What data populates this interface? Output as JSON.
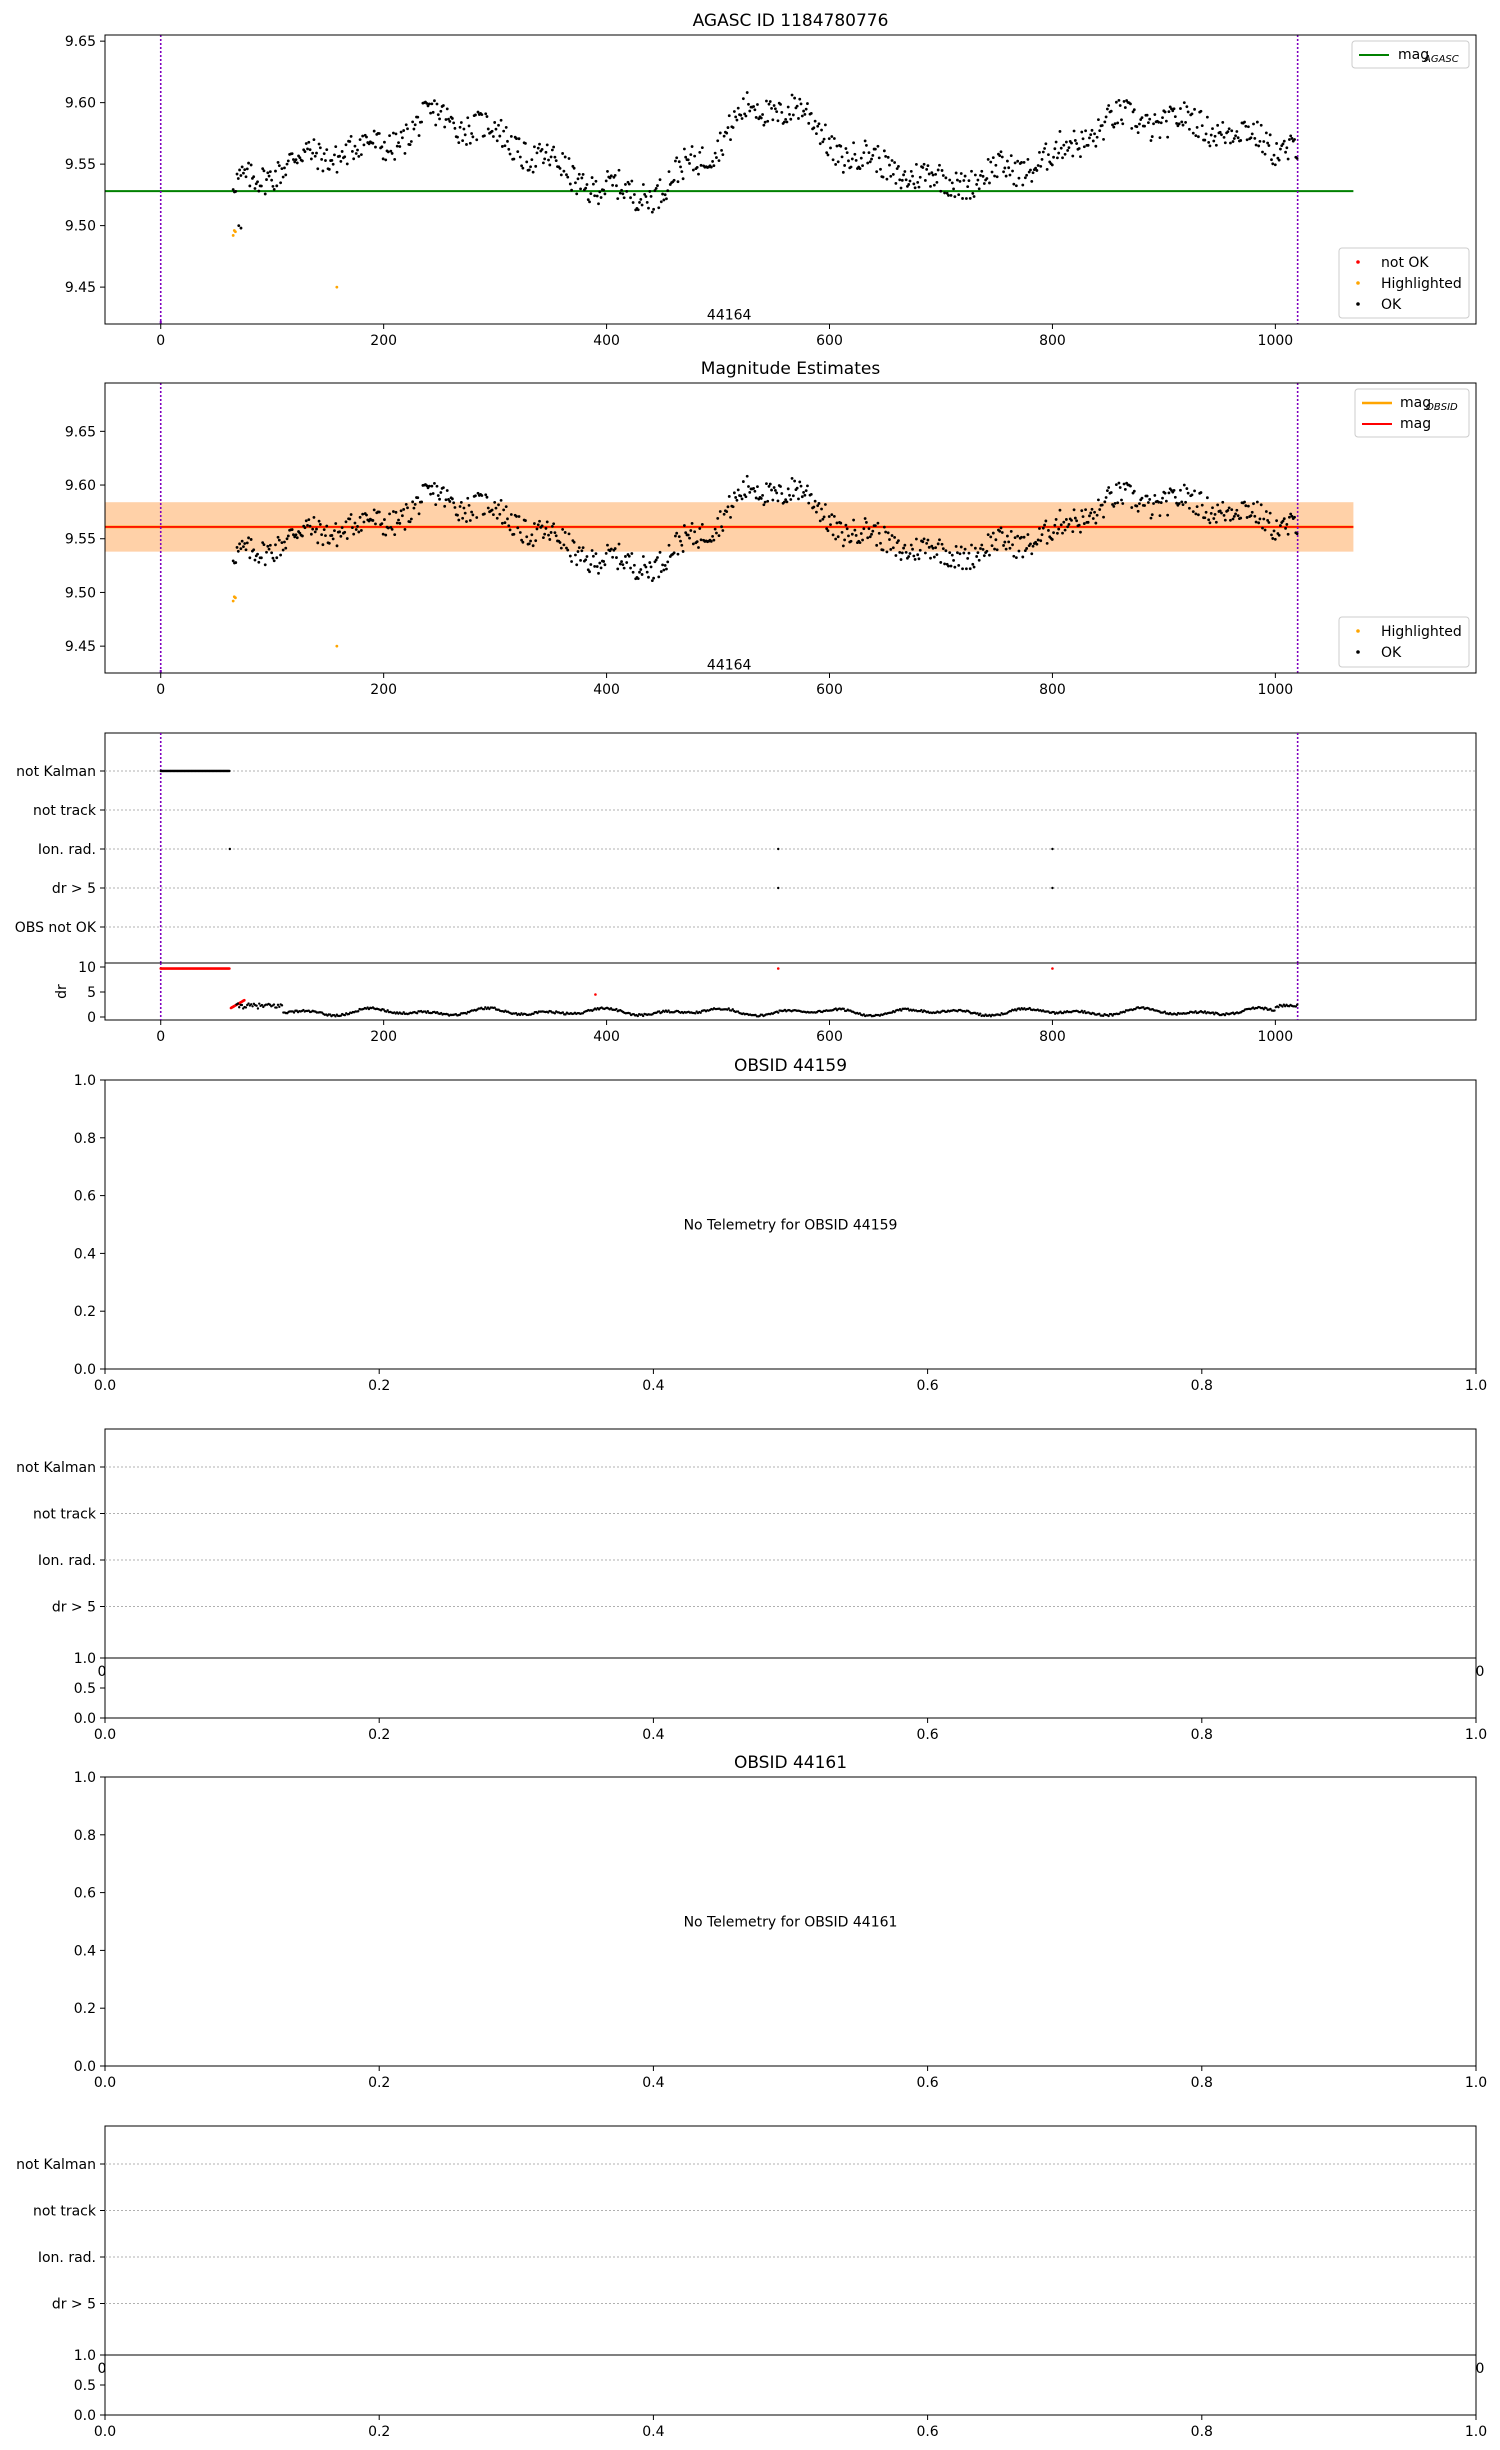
{
  "chart_data": [
    {
      "type": "scatter",
      "title": "AGASC ID 1184780776",
      "xlim": [
        -50,
        1180
      ],
      "ylim": [
        9.42,
        9.655
      ],
      "xticks": [
        0,
        200,
        400,
        600,
        800,
        1000
      ],
      "yticks": [
        9.45,
        9.5,
        9.55,
        9.6,
        9.65
      ],
      "ytick_labels": [
        "9.45",
        "9.50",
        "9.55",
        "9.60",
        "9.65"
      ],
      "vlines": [
        0,
        1020
      ],
      "vline_color": "#7f00bf",
      "hlines": [
        {
          "y": 9.528,
          "x0": -50,
          "x1": 1070,
          "color": "#008000",
          "name": "mag_AGASC"
        }
      ],
      "annotation": {
        "text": "44164",
        "x": 510,
        "y": 9.427
      },
      "series": [
        {
          "name": "not OK",
          "color": "#ff0000",
          "points": []
        },
        {
          "name": "Highlighted",
          "color": "#ffa500",
          "points": [
            [
              65,
              9.492
            ],
            [
              66,
              9.496
            ],
            [
              67,
              9.495
            ],
            [
              158,
              9.45
            ]
          ]
        },
        {
          "name": "OK",
          "color": "#000000",
          "points": "dense trace x=65..1020 following mag curve"
        }
      ],
      "trend": [
        [
          65,
          9.53
        ],
        [
          100,
          9.545
        ],
        [
          130,
          9.555
        ],
        [
          160,
          9.56
        ],
        [
          200,
          9.565
        ],
        [
          250,
          9.59
        ],
        [
          300,
          9.575
        ],
        [
          340,
          9.555
        ],
        [
          380,
          9.535
        ],
        [
          420,
          9.525
        ],
        [
          450,
          9.53
        ],
        [
          490,
          9.56
        ],
        [
          530,
          9.595
        ],
        [
          570,
          9.595
        ],
        [
          610,
          9.56
        ],
        [
          650,
          9.548
        ],
        [
          700,
          9.535
        ],
        [
          740,
          9.54
        ],
        [
          800,
          9.555
        ],
        [
          850,
          9.585
        ],
        [
          900,
          9.585
        ],
        [
          950,
          9.58
        ],
        [
          1000,
          9.565
        ],
        [
          1020,
          9.565
        ]
      ],
      "legends": [
        {
          "position": "top-right",
          "entries": [
            {
              "label": "mag",
              "sub": "AGASC",
              "kind": "line",
              "color": "#008000"
            }
          ]
        },
        {
          "position": "bottom-right",
          "entries": [
            {
              "label": "not OK",
              "kind": "point",
              "color": "#ff0000"
            },
            {
              "label": "Highlighted",
              "kind": "point",
              "color": "#ffa500"
            },
            {
              "label": "OK",
              "kind": "point",
              "color": "#000000"
            }
          ]
        }
      ]
    },
    {
      "type": "scatter",
      "title": "Magnitude Estimates",
      "xlim": [
        -50,
        1180
      ],
      "ylim": [
        9.425,
        9.695
      ],
      "xticks": [
        0,
        200,
        400,
        600,
        800,
        1000
      ],
      "yticks": [
        9.45,
        9.5,
        9.55,
        9.6,
        9.65
      ],
      "ytick_labels": [
        "9.45",
        "9.50",
        "9.55",
        "9.60",
        "9.65"
      ],
      "vlines": [
        0,
        1020
      ],
      "hlines": [
        {
          "y": 9.561,
          "x0": -50,
          "x1": 1070,
          "color": "#ffa500",
          "name": "mag_OBSID"
        },
        {
          "y": 9.561,
          "x0": -50,
          "x1": 1070,
          "color": "#ff0000",
          "name": "mag"
        }
      ],
      "bands": [
        {
          "y0": 9.538,
          "y1": 9.584,
          "color": "#ff0000",
          "opacity": 0.12
        },
        {
          "y0": 9.538,
          "y1": 9.584,
          "color": "#ffa500",
          "opacity": 0.25
        }
      ],
      "annotation": {
        "text": "44164",
        "x": 510,
        "y": 9.432
      },
      "legends": [
        {
          "position": "top-right",
          "entries": [
            {
              "label": "mag",
              "sub": "OBSID",
              "kind": "line",
              "color": "#ffa500"
            },
            {
              "label": "mag",
              "kind": "line",
              "color": "#ff0000"
            }
          ]
        },
        {
          "position": "bottom-right",
          "entries": [
            {
              "label": "Highlighted",
              "kind": "point",
              "color": "#ffa500"
            },
            {
              "label": "OK",
              "kind": "point",
              "color": "#000000"
            }
          ]
        }
      ]
    },
    {
      "type": "scatter",
      "title": "",
      "xlim": [
        -50,
        1180
      ],
      "categories": [
        "not Kalman",
        "not track",
        "Ion. rad.",
        "dr > 5",
        "OBS not OK"
      ],
      "flags": {
        "not Kalman": {
          "x0": 0,
          "x1": 62
        },
        "Ion. rad.": [
          62,
          554,
          800
        ],
        "dr > 5": [
          554,
          800
        ]
      }
    },
    {
      "type": "scatter",
      "title": "",
      "ylabel": "dr",
      "xlim": [
        -50,
        1180
      ],
      "ylim": [
        -0.6,
        10.8
      ],
      "yticks": [
        0,
        5,
        10
      ],
      "xticks": [
        0,
        200,
        400,
        600,
        800,
        1000
      ],
      "clipped_red": {
        "y": 9.7,
        "x0": 0,
        "x1": 62,
        "extra": [
          554,
          800
        ]
      }
    },
    {
      "type": "scatter",
      "title": "OBSID 44159",
      "xlim": [
        0,
        1
      ],
      "ylim": [
        0,
        1
      ],
      "ticks": [
        "0.0",
        "0.2",
        "0.4",
        "0.6",
        "0.8",
        "1.0"
      ],
      "message": "No Telemetry for OBSID 44159"
    },
    {
      "type": "scatter",
      "title": "",
      "categories": [
        "not Kalman",
        "not track",
        "Ion. rad.",
        "dr > 5"
      ],
      "tick_fragment": [
        "1.0",
        "0",
        "0"
      ],
      "bottom_yticks": [
        "0.5",
        "0.0"
      ],
      "bottom_xticks": [
        "0.0",
        "0.2",
        "0.4",
        "0.6",
        "0.8",
        "1.0"
      ]
    },
    {
      "type": "scatter",
      "title": "OBSID 44161",
      "xlim": [
        0,
        1
      ],
      "ylim": [
        0,
        1
      ],
      "ticks": [
        "0.0",
        "0.2",
        "0.4",
        "0.6",
        "0.8",
        "1.0"
      ],
      "message": "No Telemetry for OBSID 44161"
    },
    {
      "type": "scatter",
      "title": "",
      "categories": [
        "not Kalman",
        "not track",
        "Ion. rad.",
        "dr > 5"
      ],
      "tick_fragment": [
        "1.0",
        "0",
        "0"
      ],
      "bottom_yticks": [
        "0.5",
        "0.0"
      ],
      "bottom_xticks": [
        "0.0",
        "0.2",
        "0.4",
        "0.6",
        "0.8",
        "1.0"
      ]
    }
  ]
}
